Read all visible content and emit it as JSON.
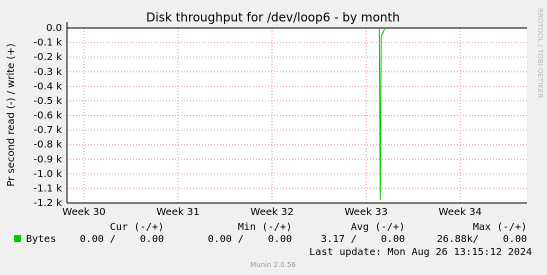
{
  "chart_data": {
    "type": "line",
    "title": "Disk throughput for /dev/loop6 - by month",
    "y_label": "Pr second read (-) / write (+)",
    "side_text": "RRDTOOL / TOBI OETIKER",
    "x": [
      33.14,
      33.15,
      33.16,
      33.18,
      33.2
    ],
    "xlim": [
      29.82,
      34.71
    ],
    "xticks": [
      {
        "value": 30,
        "label": "Week 30"
      },
      {
        "value": 31,
        "label": "Week 31"
      },
      {
        "value": 32,
        "label": "Week 32"
      },
      {
        "value": 33,
        "label": "Week 33"
      },
      {
        "value": 34,
        "label": "Week 34"
      }
    ],
    "ylim": [
      -1200,
      0
    ],
    "yticks": [
      {
        "value": 0,
        "label": "0.0"
      },
      {
        "value": -100,
        "label": "-0.1 k"
      },
      {
        "value": -200,
        "label": "-0.2 k"
      },
      {
        "value": -300,
        "label": "-0.3 k"
      },
      {
        "value": -400,
        "label": "-0.4 k"
      },
      {
        "value": -500,
        "label": "-0.5 k"
      },
      {
        "value": -600,
        "label": "-0.6 k"
      },
      {
        "value": -700,
        "label": "-0.7 k"
      },
      {
        "value": -800,
        "label": "-0.8 k"
      },
      {
        "value": -900,
        "label": "-0.9 k"
      },
      {
        "value": -1000,
        "label": "-1.0 k"
      },
      {
        "value": -1100,
        "label": "-1.1 k"
      },
      {
        "value": -1200,
        "label": "-1.2 k"
      }
    ],
    "grid": true,
    "series": [
      {
        "name": "Bytes",
        "color": "#00cc00",
        "values": [
          0,
          -1180,
          -60,
          -30,
          0
        ]
      }
    ],
    "legend_table": {
      "headers": [
        "Cur (-/+)",
        "Min (-/+)",
        "Avg (-/+)",
        "Max (-/+)"
      ],
      "row": [
        "0.00 /    0.00",
        "0.00 /    0.00",
        "3.17 /    0.00",
        "26.88k/    0.00"
      ]
    },
    "last_update": "Last update: Mon Aug 26 13:15:12 2024",
    "footer": "Munin 2.0.56"
  }
}
